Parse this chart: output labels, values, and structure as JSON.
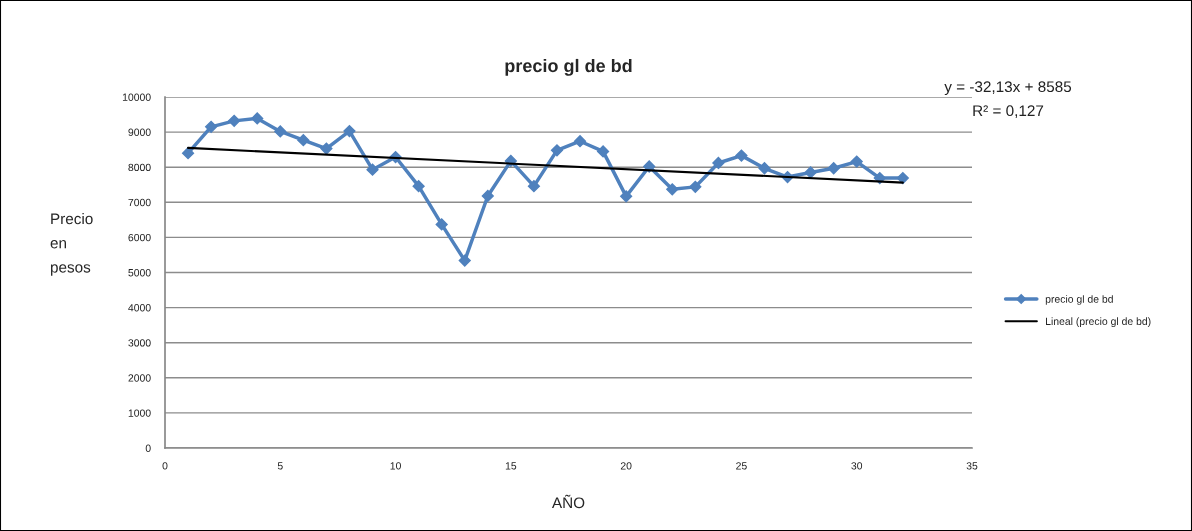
{
  "chart_data": {
    "type": "line",
    "title": "precio gl de bd",
    "xlabel": "AÑO",
    "ylabel": "Precio en pesos",
    "annotations": [
      "y = -32,13x + 8585",
      "R² = 0,127"
    ],
    "x": [
      1,
      2,
      3,
      4,
      5,
      6,
      7,
      8,
      9,
      10,
      11,
      12,
      13,
      14,
      15,
      16,
      17,
      18,
      19,
      20,
      21,
      22,
      23,
      24,
      25,
      26,
      27,
      28,
      29,
      30,
      31,
      32
    ],
    "series": [
      {
        "name": "precio gl de bd",
        "color": "#4f81bd",
        "marker": "diamond",
        "values": [
          8400,
          9150,
          9320,
          9390,
          9020,
          8770,
          8530,
          9030,
          7930,
          8290,
          7460,
          6370,
          5340,
          7180,
          8180,
          7460,
          8480,
          8740,
          8450,
          7170,
          8020,
          7370,
          7440,
          8120,
          8330,
          7970,
          7720,
          7850,
          7970,
          8160,
          7690,
          7690
        ]
      },
      {
        "name": "Lineal (precio gl de bd)",
        "type": "line",
        "color": "#000000",
        "marker": "none",
        "x": [
          1,
          32
        ],
        "values": [
          8550,
          7560
        ]
      }
    ],
    "xlim": [
      0,
      35
    ],
    "xticks": [
      0,
      5,
      10,
      15,
      20,
      25,
      30,
      35
    ],
    "ylim": [
      0,
      10000
    ],
    "yticks": [
      0,
      1000,
      2000,
      3000,
      4000,
      5000,
      6000,
      7000,
      8000,
      9000,
      10000
    ],
    "grid": "y",
    "legend": "right",
    "line_style": "solid"
  }
}
